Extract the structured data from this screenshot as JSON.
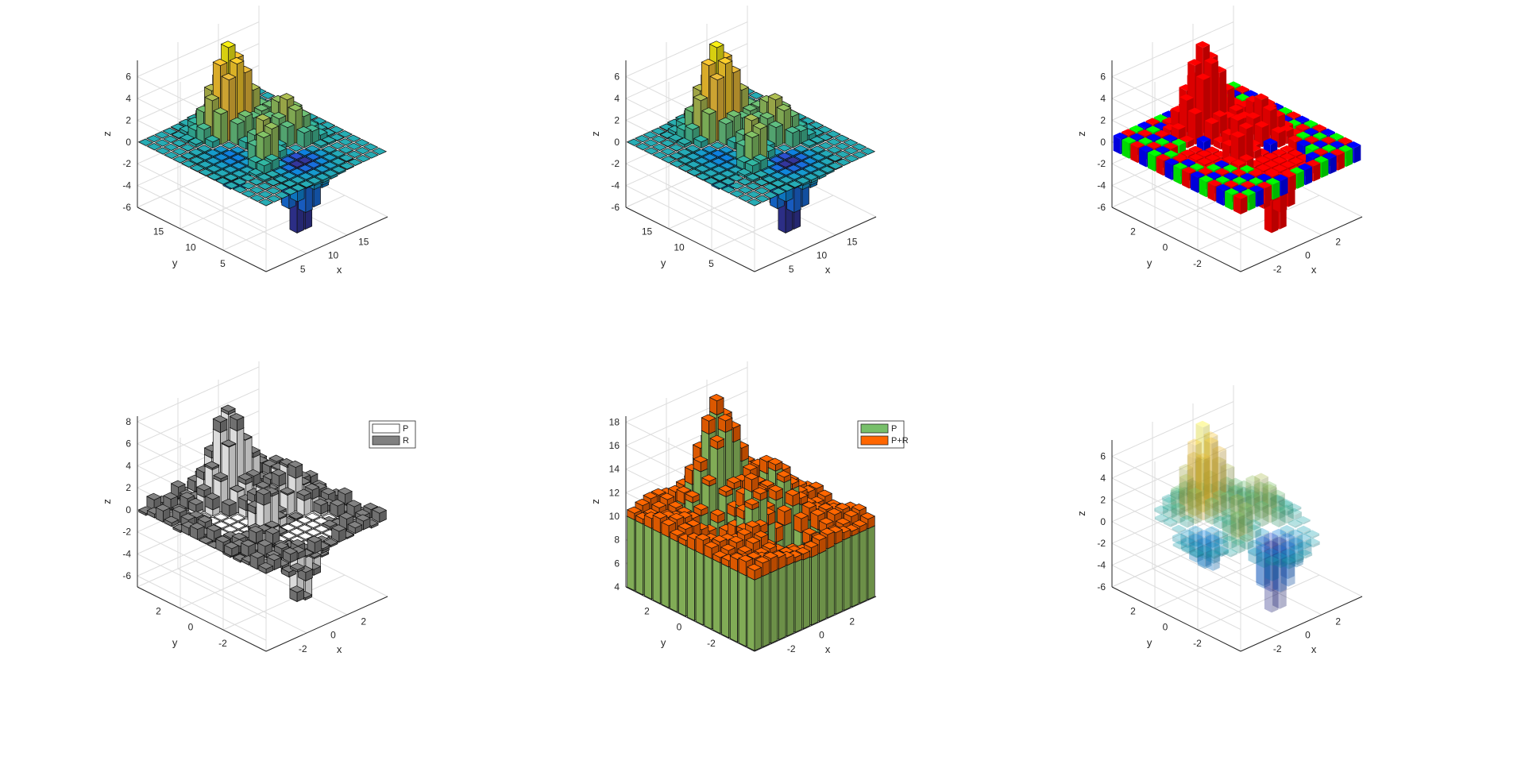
{
  "chart_data": [
    {
      "type": "bar3",
      "style": "colormap-height",
      "xlabel": "x",
      "ylabel": "y",
      "zlabel": "z",
      "xticks": [
        "5",
        "10",
        "15"
      ],
      "yticks": [
        "5",
        "10",
        "15"
      ],
      "zticks": [
        "-6",
        "-4",
        "-2",
        "0",
        "2",
        "4",
        "6"
      ],
      "zlim": [
        -6,
        7.5
      ]
    },
    {
      "type": "bar3",
      "style": "colormap-height-flat",
      "xlabel": "x",
      "ylabel": "y",
      "zlabel": "z",
      "xticks": [
        "5",
        "10",
        "15"
      ],
      "yticks": [
        "5",
        "10",
        "15"
      ],
      "zticks": [
        "-6",
        "-4",
        "-2",
        "0",
        "2",
        "4",
        "6"
      ],
      "zlim": [
        -6,
        7.5
      ]
    },
    {
      "type": "bar3",
      "style": "rgb-slices",
      "colors": [
        "#ff0000",
        "#00ff00",
        "#0000ff"
      ],
      "xlabel": "x",
      "ylabel": "y",
      "zlabel": "z",
      "xticks": [
        "-2",
        "0",
        "2"
      ],
      "yticks": [
        "-2",
        "0",
        "2"
      ],
      "zticks": [
        "-6",
        "-4",
        "-2",
        "0",
        "2",
        "4",
        "6"
      ],
      "zlim": [
        -6,
        7.5
      ]
    },
    {
      "type": "bar3",
      "style": "stacked-grayscale",
      "xlabel": "x",
      "ylabel": "y",
      "zlabel": "z",
      "xticks": [
        "-2",
        "0",
        "2"
      ],
      "yticks": [
        "-2",
        "0",
        "2"
      ],
      "zticks": [
        "-6",
        "-4",
        "-2",
        "0",
        "2",
        "4",
        "6",
        "8"
      ],
      "zlim": [
        -7,
        8.5
      ],
      "legend": [
        {
          "label": "P",
          "color": "#ffffff"
        },
        {
          "label": "R",
          "color": "#808080"
        }
      ],
      "legend_location": "top-right"
    },
    {
      "type": "bar3",
      "style": "stacked-green-orange",
      "xlabel": "x",
      "ylabel": "y",
      "zlabel": "z",
      "xticks": [
        "-2",
        "0",
        "2"
      ],
      "yticks": [
        "-2",
        "0",
        "2"
      ],
      "zticks": [
        "4",
        "6",
        "8",
        "10",
        "12",
        "14",
        "16",
        "18"
      ],
      "zlim": [
        4,
        18.5
      ],
      "legend": [
        {
          "label": "P",
          "color": "#77bf6a"
        },
        {
          "label": "P+R",
          "color": "#ff6600"
        }
      ],
      "legend_location": "top-right"
    },
    {
      "type": "bar3",
      "style": "transparent-voxels",
      "xlabel": "x",
      "ylabel": "y",
      "zlabel": "z",
      "xticks": [
        "-2",
        "0",
        "2"
      ],
      "yticks": [
        "-2",
        "0",
        "2"
      ],
      "zticks": [
        "-6",
        "-4",
        "-2",
        "0",
        "2",
        "4",
        "6"
      ],
      "zlim": [
        -6,
        7.5
      ]
    }
  ]
}
